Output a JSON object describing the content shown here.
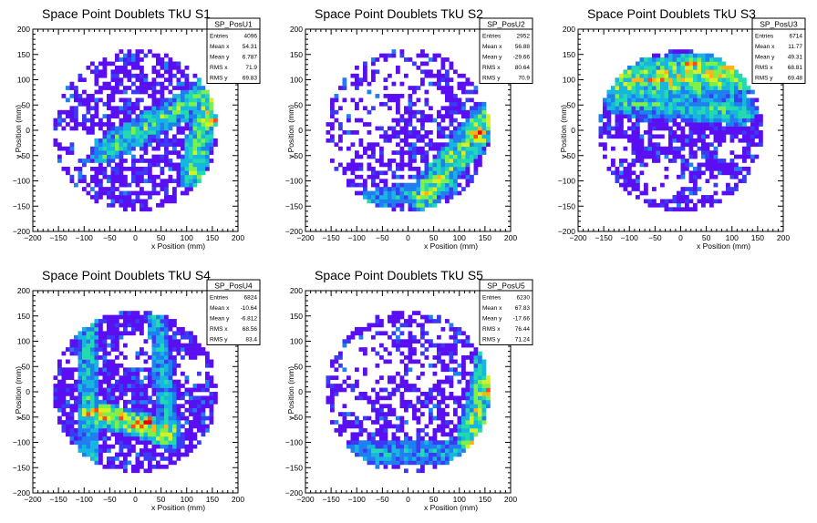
{
  "chart_data": [
    {
      "type": "heatmap",
      "title": "Space Point Doublets TkU S1",
      "xlabel": "x Position (mm)",
      "ylabel": "y Position (mm)",
      "xlim": [
        -200,
        200
      ],
      "ylim": [
        -200,
        200
      ],
      "xticks": [
        "−200",
        "−150",
        "−100",
        "−50",
        "0",
        "50",
        "100",
        "150",
        "200"
      ],
      "yticks": [
        "−200",
        "−150",
        "−100",
        "−50",
        "0",
        "50",
        "100",
        "150",
        "200"
      ],
      "bin_size_mm": 8,
      "stats": {
        "name": "SP_PosU1",
        "rows": [
          {
            "label": "Entries",
            "value": "4096"
          },
          {
            "label": "Mean x",
            "value": "54.31"
          },
          {
            "label": "Mean y",
            "value": "6.787"
          },
          {
            "label": "RMS x",
            "value": "71.9"
          },
          {
            "label": "RMS y",
            "value": "69.83"
          }
        ]
      },
      "hotspots": [
        {
          "shape": "band",
          "x1": -60,
          "y1": -40,
          "x2": 150,
          "y2": 80,
          "width": 28,
          "level": 0.45
        },
        {
          "shape": "band",
          "x1": 110,
          "y1": -90,
          "x2": 150,
          "y2": 110,
          "width": 26,
          "level": 0.55
        },
        {
          "shape": "blob",
          "x": 158,
          "y": 18,
          "r": 14,
          "level": 1.0
        },
        {
          "shape": "blob",
          "x": -40,
          "y": -20,
          "r": 25,
          "level": 0.3
        }
      ],
      "empty_regions": [
        {
          "x": -110,
          "y": -30,
          "r": 30
        },
        {
          "x": -140,
          "y": 60,
          "r": 22
        },
        {
          "x": -100,
          "y": 100,
          "r": 20
        },
        {
          "x": -130,
          "y": -70,
          "r": 20
        },
        {
          "x": 20,
          "y": 130,
          "r": 16
        }
      ],
      "fill_prob": 0.62
    },
    {
      "type": "heatmap",
      "title": "Space Point Doublets TkU S2",
      "xlabel": "x Position (mm)",
      "ylabel": "y Position (mm)",
      "xlim": [
        -200,
        200
      ],
      "ylim": [
        -200,
        200
      ],
      "xticks": [
        "−200",
        "−150",
        "−100",
        "−50",
        "0",
        "50",
        "100",
        "150",
        "200"
      ],
      "yticks": [
        "−200",
        "−150",
        "−100",
        "−50",
        "0",
        "50",
        "100",
        "150",
        "200"
      ],
      "bin_size_mm": 8,
      "stats": {
        "name": "SP_PosU2",
        "rows": [
          {
            "label": "Entries",
            "value": "2952"
          },
          {
            "label": "Mean x",
            "value": "56.88"
          },
          {
            "label": "Mean y",
            "value": "-29.66"
          },
          {
            "label": "RMS x",
            "value": "80.64"
          },
          {
            "label": "RMS y",
            "value": "70.9"
          }
        ]
      },
      "hotspots": [
        {
          "shape": "band",
          "x1": 30,
          "y1": -130,
          "x2": 160,
          "y2": 30,
          "width": 32,
          "level": 0.55
        },
        {
          "shape": "blob",
          "x": 135,
          "y": -10,
          "r": 22,
          "level": 0.95
        },
        {
          "shape": "band",
          "x1": -80,
          "y1": -140,
          "x2": 80,
          "y2": -110,
          "width": 20,
          "level": 0.3
        }
      ],
      "empty_regions": [
        {
          "x": -80,
          "y": 40,
          "r": 55
        },
        {
          "x": -20,
          "y": 110,
          "r": 35
        },
        {
          "x": -130,
          "y": -40,
          "r": 25
        },
        {
          "x": 40,
          "y": 60,
          "r": 30
        },
        {
          "x": -40,
          "y": -40,
          "r": 20
        }
      ],
      "fill_prob": 0.55
    },
    {
      "type": "heatmap",
      "title": "Space Point Doublets TkU S3",
      "xlabel": "x Position (mm)",
      "ylabel": "y Position (mm)",
      "xlim": [
        -200,
        200
      ],
      "ylim": [
        -200,
        200
      ],
      "xticks": [
        "−200",
        "−150",
        "−100",
        "−50",
        "0",
        "50",
        "100",
        "150",
        "200"
      ],
      "yticks": [
        "−200",
        "−150",
        "−100",
        "−50",
        "0",
        "50",
        "100",
        "150",
        "200"
      ],
      "bin_size_mm": 8,
      "stats": {
        "name": "SP_PosU3",
        "rows": [
          {
            "label": "Entries",
            "value": "6714"
          },
          {
            "label": "Mean x",
            "value": "11.77"
          },
          {
            "label": "Mean y",
            "value": "49.31"
          },
          {
            "label": "RMS x",
            "value": "68.81"
          },
          {
            "label": "RMS y",
            "value": "69.48"
          }
        ]
      },
      "hotspots": [
        {
          "shape": "band",
          "x1": -110,
          "y1": 95,
          "x2": 150,
          "y2": 120,
          "width": 45,
          "level": 0.6
        },
        {
          "shape": "band",
          "x1": -120,
          "y1": 60,
          "x2": 120,
          "y2": 40,
          "width": 30,
          "level": 0.4
        },
        {
          "shape": "blob",
          "x": 20,
          "y": 130,
          "r": 20,
          "level": 0.9
        },
        {
          "shape": "blob",
          "x": 80,
          "y": 120,
          "r": 18,
          "level": 0.85
        }
      ],
      "empty_regions": [
        {
          "x": -40,
          "y": -100,
          "r": 40
        },
        {
          "x": 60,
          "y": -110,
          "r": 30
        },
        {
          "x": -120,
          "y": -40,
          "r": 25
        },
        {
          "x": 100,
          "y": -40,
          "r": 22
        }
      ],
      "fill_prob": 0.72
    },
    {
      "type": "heatmap",
      "title": "Space Point Doublets TkU S4",
      "xlabel": "x Position (mm)",
      "ylabel": "y Position (mm)",
      "xlim": [
        -200,
        200
      ],
      "ylim": [
        -200,
        200
      ],
      "xticks": [
        "−200",
        "−150",
        "−100",
        "−50",
        "0",
        "50",
        "100",
        "150",
        "200"
      ],
      "yticks": [
        "−200",
        "−150",
        "−100",
        "−50",
        "0",
        "50",
        "100",
        "150",
        "200"
      ],
      "bin_size_mm": 8,
      "stats": {
        "name": "SP_PosU4",
        "rows": [
          {
            "label": "Entries",
            "value": "6824"
          },
          {
            "label": "Mean x",
            "value": "-10.64"
          },
          {
            "label": "Mean y",
            "value": "-6.812"
          },
          {
            "label": "RMS x",
            "value": "68.56"
          },
          {
            "label": "RMS y",
            "value": "83.4"
          }
        ]
      },
      "hotspots": [
        {
          "shape": "band",
          "x1": -90,
          "y1": -40,
          "x2": 60,
          "y2": -80,
          "width": 26,
          "level": 0.7
        },
        {
          "shape": "blob",
          "x": 20,
          "y": -60,
          "r": 16,
          "level": 1.0
        },
        {
          "shape": "band",
          "x1": -90,
          "y1": 140,
          "x2": -90,
          "y2": -140,
          "width": 22,
          "level": 0.4
        },
        {
          "shape": "band",
          "x1": 40,
          "y1": 140,
          "x2": 70,
          "y2": -100,
          "width": 20,
          "level": 0.35
        }
      ],
      "empty_regions": [
        {
          "x": 0,
          "y": 80,
          "r": 35
        },
        {
          "x": 110,
          "y": 40,
          "r": 30
        },
        {
          "x": -130,
          "y": 60,
          "r": 18
        }
      ],
      "fill_prob": 0.78
    },
    {
      "type": "heatmap",
      "title": "Space Point Doublets TkU S5",
      "xlabel": "x Position (mm)",
      "ylabel": "y Position (mm)",
      "xlim": [
        -200,
        200
      ],
      "ylim": [
        -200,
        200
      ],
      "xticks": [
        "−200",
        "−150",
        "−100",
        "−50",
        "0",
        "50",
        "100",
        "150",
        "200"
      ],
      "yticks": [
        "−200",
        "−150",
        "−100",
        "−50",
        "0",
        "50",
        "100",
        "150",
        "200"
      ],
      "bin_size_mm": 8,
      "stats": {
        "name": "SP_PosU5",
        "rows": [
          {
            "label": "Entries",
            "value": "6230"
          },
          {
            "label": "Mean x",
            "value": "67.83"
          },
          {
            "label": "Mean y",
            "value": "-17.66"
          },
          {
            "label": "RMS x",
            "value": "76.44"
          },
          {
            "label": "RMS y",
            "value": "71.24"
          }
        ]
      },
      "hotspots": [
        {
          "shape": "band",
          "x1": 120,
          "y1": -110,
          "x2": 160,
          "y2": 60,
          "width": 30,
          "level": 0.55
        },
        {
          "shape": "blob",
          "x": 155,
          "y": 0,
          "r": 12,
          "level": 1.0
        },
        {
          "shape": "band",
          "x1": -100,
          "y1": -120,
          "x2": 100,
          "y2": -120,
          "width": 25,
          "level": 0.3
        }
      ],
      "empty_regions": [
        {
          "x": -70,
          "y": 60,
          "r": 55
        },
        {
          "x": 30,
          "y": 40,
          "r": 35
        },
        {
          "x": -120,
          "y": -20,
          "r": 22
        },
        {
          "x": 60,
          "y": 120,
          "r": 22
        }
      ],
      "fill_prob": 0.6
    }
  ],
  "palette": [
    "#5a0ff2",
    "#3a3cf5",
    "#1f7ff0",
    "#16b6e0",
    "#22d9b0",
    "#7ef04a",
    "#d9ef22",
    "#ffb21a",
    "#ff4a14",
    "#e60000"
  ]
}
